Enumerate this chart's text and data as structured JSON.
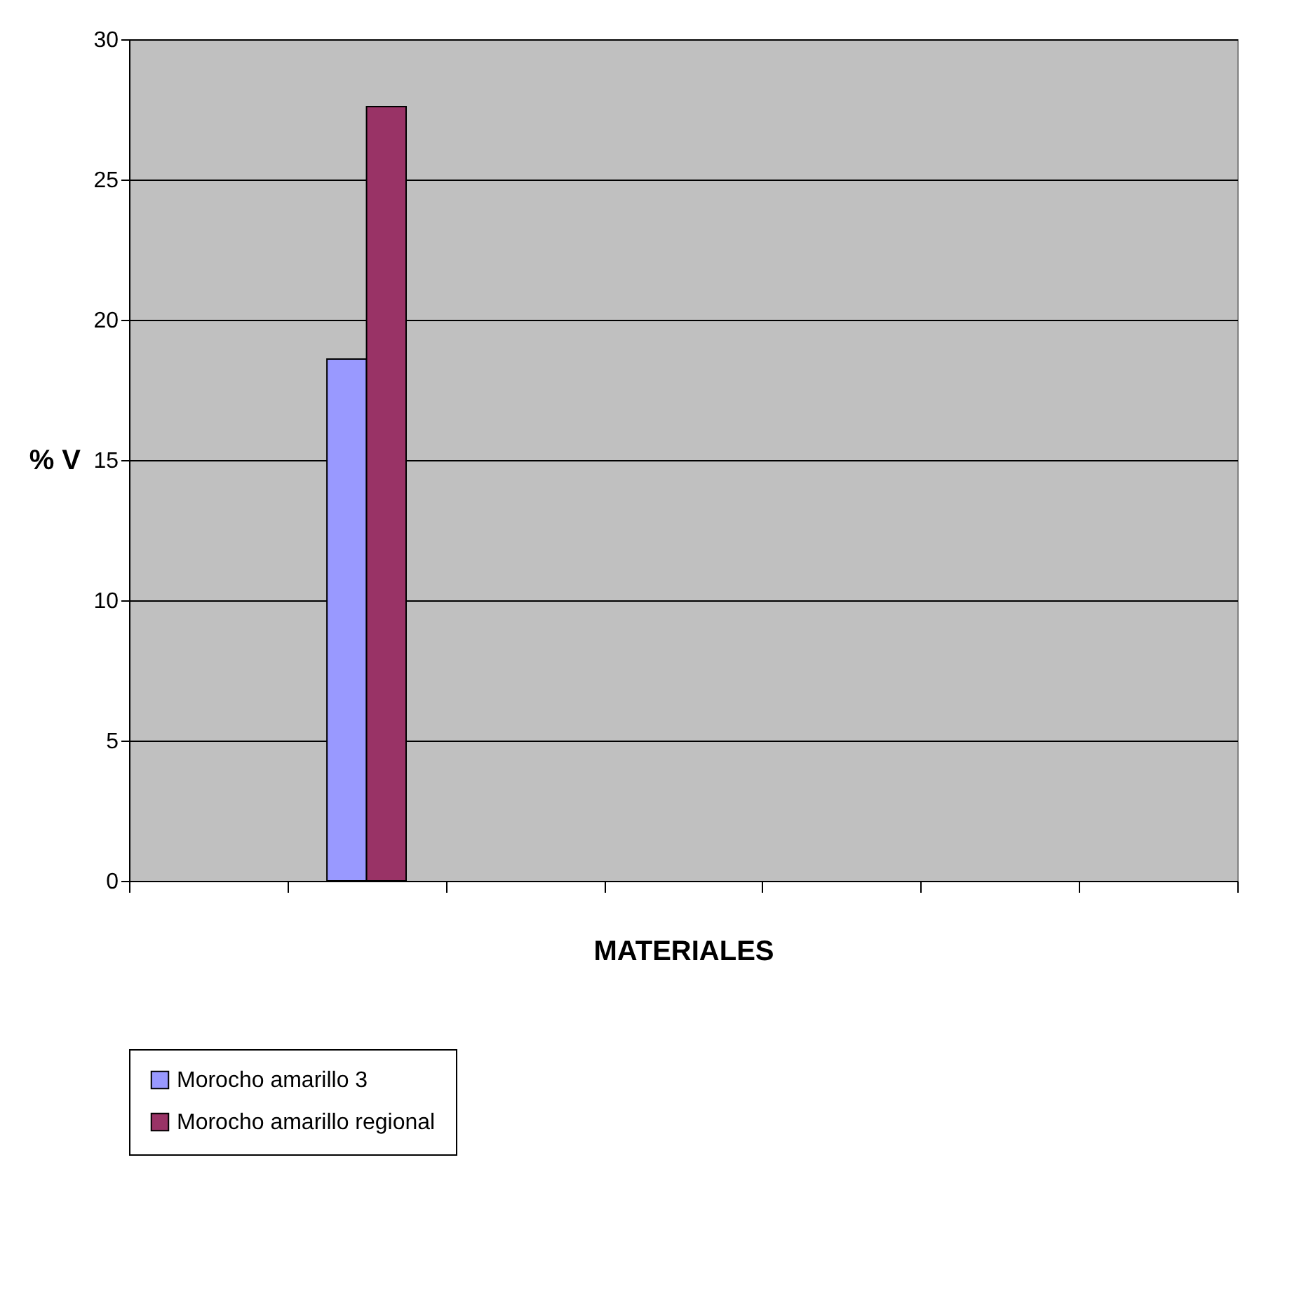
{
  "chart_data": {
    "type": "bar",
    "xlabel": "MATERIALES",
    "ylabel": "% V",
    "categories": [
      null,
      null,
      null,
      null,
      null,
      null,
      null
    ],
    "series": [
      {
        "name": "Morocho amarillo 3",
        "color": "#9999ff",
        "values": [
          null,
          18.6,
          null,
          null,
          null,
          null,
          null
        ]
      },
      {
        "name": "Morocho amarillo regional",
        "color": "#993366",
        "values": [
          null,
          27.6,
          null,
          null,
          null,
          null,
          null
        ]
      }
    ],
    "ylim": [
      0,
      30
    ],
    "yticks": [
      0,
      5,
      10,
      15,
      20,
      25,
      30
    ],
    "grid": "y",
    "legend": "bottom"
  }
}
